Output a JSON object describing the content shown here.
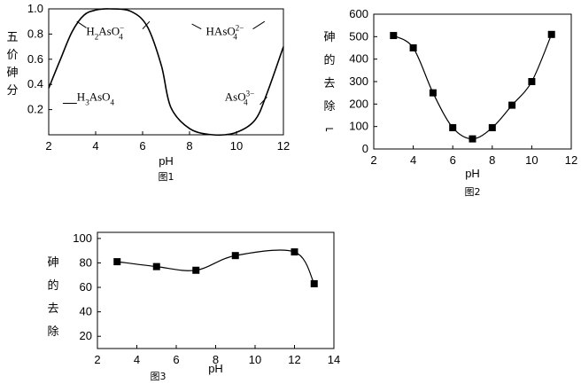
{
  "chart_data": [
    {
      "type": "line",
      "caption": "图1",
      "xlabel": "pH",
      "ylabel_chars": [
        "五",
        "价",
        "砷",
        "分"
      ],
      "xlim": [
        2,
        12
      ],
      "ylim": [
        0,
        1.0
      ],
      "x_ticks": [
        "2",
        "4",
        "6",
        "8",
        "10",
        "12"
      ],
      "y_ticks": [
        "0.2",
        "0.4",
        "0.6",
        "0.8",
        "1.0"
      ],
      "series": [
        {
          "name": "H3AsO4",
          "x": [
            2,
            2.5,
            3,
            3.5,
            4,
            4.6,
            5.5,
            6.2,
            6.8,
            7.2,
            8,
            9,
            10,
            10.8,
            11.3,
            12
          ],
          "y": [
            0.37,
            0.6,
            0.82,
            0.95,
            0.99,
            1.0,
            0.98,
            0.86,
            0.55,
            0.22,
            0.05,
            0.0,
            0.02,
            0.12,
            0.33,
            0.7
          ]
        }
      ],
      "annotations": [
        {
          "text": "H2AsO4-",
          "base": "H",
          "sub1": "2",
          "mid": "AsO",
          "sub2": "4",
          "sup": "−",
          "x": 3.6,
          "y": 0.82
        },
        {
          "text": "HAsO42-",
          "base": "HAsO",
          "sub2": "4",
          "sup": "2−",
          "x": 8.7,
          "y": 0.82
        },
        {
          "text": "H3AsO4",
          "base": "H",
          "sub1": "3",
          "mid": "AsO",
          "sub2": "4",
          "x": 3.2,
          "y": 0.3
        },
        {
          "text": "AsO43-",
          "base": "AsO",
          "sub2": "4",
          "sup": "3−",
          "x": 9.5,
          "y": 0.3
        }
      ]
    },
    {
      "type": "line",
      "caption": "图2",
      "xlabel": "pH",
      "ylabel_chars": [
        "砷",
        "的",
        "去",
        "除",
        "⌐"
      ],
      "xlim": [
        2,
        12
      ],
      "ylim": [
        0,
        600
      ],
      "x_ticks": [
        "2",
        "4",
        "6",
        "8",
        "10",
        "12"
      ],
      "y_ticks": [
        "0",
        "100",
        "200",
        "300",
        "400",
        "500",
        "600"
      ],
      "x": [
        3,
        4,
        5,
        6,
        7,
        8,
        9,
        10,
        11
      ],
      "values": [
        505,
        450,
        250,
        95,
        45,
        95,
        195,
        300,
        510
      ]
    },
    {
      "type": "line",
      "caption": "图3",
      "xlabel": "pH",
      "ylabel_chars": [
        "砷",
        "的",
        "去",
        "除"
      ],
      "xlim": [
        2,
        14
      ],
      "ylim": [
        10,
        105
      ],
      "x_ticks": [
        "2",
        "4",
        "6",
        "8",
        "10",
        "12",
        "14"
      ],
      "y_ticks": [
        "20",
        "40",
        "60",
        "80",
        "100"
      ],
      "x": [
        3,
        5,
        7,
        9,
        12,
        13
      ],
      "values": [
        81,
        77,
        74,
        86,
        89,
        63
      ]
    }
  ]
}
